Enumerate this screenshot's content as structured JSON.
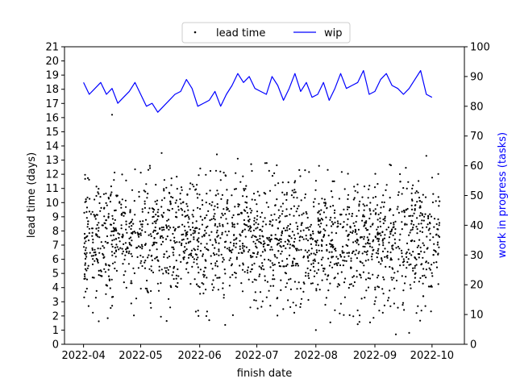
{
  "chart_data": {
    "type": "scatter",
    "xlabel": "finish date",
    "ylabel": "lead time (days)",
    "y2label": "work in progress (tasks)",
    "x_range": [
      "2022-03-22",
      "2022-10-18"
    ],
    "ylim": [
      0,
      21
    ],
    "y2lim": [
      0,
      100
    ],
    "x_ticks": [
      "2022-04",
      "2022-05",
      "2022-06",
      "2022-07",
      "2022-08",
      "2022-09",
      "2022-10"
    ],
    "y_ticks": [
      0,
      1,
      2,
      3,
      4,
      5,
      6,
      7,
      8,
      9,
      10,
      11,
      12,
      13,
      14,
      15,
      16,
      17,
      18,
      19,
      20,
      21
    ],
    "y2_ticks": [
      0,
      10,
      20,
      30,
      40,
      50,
      60,
      70,
      80,
      90,
      100
    ],
    "legend": {
      "placement": "top-center",
      "ncol": 2
    },
    "series": [
      {
        "name": "lead time",
        "kind": "scatter",
        "axis": "left",
        "color": "#000000",
        "approx_points": 2000,
        "date_range": [
          "2022-04-01",
          "2022-10-05"
        ],
        "mean": 7.3,
        "std": 2.2,
        "min": 0.7,
        "max": 16.2,
        "notable_points": [
          {
            "x": "2022-04-16",
            "y": 16.2
          },
          {
            "x": "2022-05-12",
            "y": 13.5
          },
          {
            "x": "2022-06-10",
            "y": 13.4
          },
          {
            "x": "2022-06-21",
            "y": 13.1
          },
          {
            "x": "2022-09-28",
            "y": 13.3
          },
          {
            "x": "2022-08-01",
            "y": 1.0
          },
          {
            "x": "2022-09-12",
            "y": 0.7
          },
          {
            "x": "2022-09-19",
            "y": 0.8
          },
          {
            "x": "2022-06-06",
            "y": 1.7
          }
        ]
      },
      {
        "name": "wip",
        "kind": "line",
        "axis": "right",
        "color": "#0000ff",
        "x": [
          "2022-04-01",
          "2022-04-04",
          "2022-04-07",
          "2022-04-10",
          "2022-04-13",
          "2022-04-16",
          "2022-04-19",
          "2022-04-22",
          "2022-04-25",
          "2022-04-28",
          "2022-05-01",
          "2022-05-04",
          "2022-05-07",
          "2022-05-10",
          "2022-05-13",
          "2022-05-16",
          "2022-05-19",
          "2022-05-22",
          "2022-05-25",
          "2022-05-28",
          "2022-05-31",
          "2022-06-03",
          "2022-06-06",
          "2022-06-09",
          "2022-06-12",
          "2022-06-15",
          "2022-06-18",
          "2022-06-21",
          "2022-06-24",
          "2022-06-27",
          "2022-06-30",
          "2022-07-03",
          "2022-07-06",
          "2022-07-09",
          "2022-07-12",
          "2022-07-15",
          "2022-07-18",
          "2022-07-21",
          "2022-07-24",
          "2022-07-27",
          "2022-07-30",
          "2022-08-02",
          "2022-08-05",
          "2022-08-08",
          "2022-08-11",
          "2022-08-14",
          "2022-08-17",
          "2022-08-20",
          "2022-08-23",
          "2022-08-26",
          "2022-08-29",
          "2022-09-01",
          "2022-09-04",
          "2022-09-07",
          "2022-09-10",
          "2022-09-13",
          "2022-09-16",
          "2022-09-19",
          "2022-09-22",
          "2022-09-25",
          "2022-09-28",
          "2022-10-01"
        ],
        "values": [
          88,
          84,
          86,
          88,
          84,
          86,
          81,
          83,
          85,
          88,
          84,
          80,
          81,
          78,
          80,
          82,
          84,
          85,
          89,
          86,
          80,
          81,
          82,
          85,
          80,
          84,
          87,
          91,
          88,
          90,
          86,
          85,
          84,
          90,
          87,
          82,
          86,
          91,
          85,
          88,
          83,
          84,
          88,
          82,
          86,
          91,
          86,
          87,
          88,
          92,
          84,
          85,
          89,
          91,
          87,
          86,
          84,
          86,
          89,
          92,
          84,
          83
        ]
      }
    ]
  }
}
